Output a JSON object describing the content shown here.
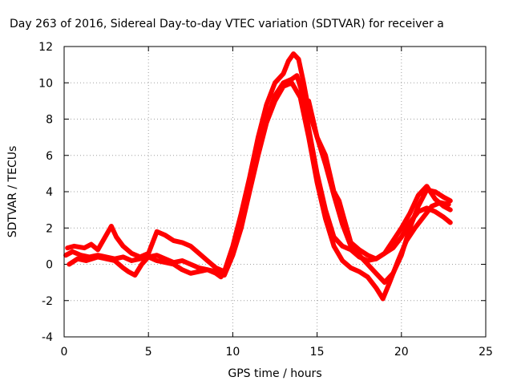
{
  "chart_data": {
    "type": "line",
    "title": "Day 263 of 2016, Sidereal Day-to-day VTEC variation (SDTVAR) for receiver a",
    "xlabel": "GPS time / hours",
    "ylabel": "SDTVAR / TECUs",
    "xlim": [
      0,
      25
    ],
    "ylim": [
      -4,
      12
    ],
    "x_ticks": [
      0,
      5,
      10,
      15,
      20,
      25
    ],
    "y_ticks": [
      -4,
      -2,
      0,
      2,
      4,
      6,
      8,
      10,
      12
    ],
    "grid": true,
    "legend": "none",
    "color": "#ff0000",
    "series": [
      {
        "x": [
          0.1,
          0.5,
          1.0,
          1.5,
          2.0,
          2.5,
          3.0,
          3.5,
          4.0,
          4.5,
          5.0,
          5.5,
          6.0,
          6.5,
          7.0,
          7.5,
          8.0,
          8.5,
          9.0,
          9.3,
          9.6,
          10.0,
          10.5,
          11.0,
          11.5,
          12.0,
          12.5,
          13.0,
          13.5,
          13.8,
          14.1,
          14.5,
          15.0,
          15.5,
          16.0,
          16.5,
          17.0,
          17.5,
          18.0,
          18.5,
          19.0,
          19.5,
          20.0,
          20.5,
          21.0,
          21.5,
          22.0,
          22.5,
          22.9
        ],
        "y": [
          0.5,
          0.7,
          0.5,
          0.4,
          0.5,
          0.4,
          0.3,
          0.4,
          0.2,
          0.3,
          0.4,
          0.5,
          0.3,
          0.1,
          0.2,
          0.0,
          -0.2,
          -0.3,
          -0.5,
          -0.7,
          -0.3,
          0.8,
          2.5,
          4.5,
          6.5,
          8.0,
          9.3,
          10.0,
          10.2,
          10.4,
          9.5,
          7.5,
          5.0,
          3.0,
          1.5,
          1.0,
          0.8,
          0.4,
          0.2,
          0.3,
          0.6,
          0.9,
          1.5,
          2.3,
          2.9,
          3.1,
          2.9,
          2.6,
          2.3
        ]
      },
      {
        "x": [
          0.2,
          0.6,
          1.2,
          1.6,
          2.0,
          2.8,
          3.1,
          3.5,
          4.0,
          4.5,
          5.0,
          5.5,
          6.0,
          6.5,
          7.0,
          7.5,
          8.0,
          8.5,
          9.0,
          9.5,
          10.0,
          10.5,
          11.0,
          11.5,
          12.0,
          12.5,
          13.0,
          13.3,
          13.6,
          13.9,
          14.2,
          14.5,
          15.0,
          15.5,
          16.0,
          16.5,
          17.0,
          17.5,
          18.0,
          18.5,
          19.0,
          19.5,
          20.0,
          20.5,
          21.0,
          21.5,
          22.0,
          22.5,
          22.9
        ],
        "y": [
          0.9,
          1.0,
          0.9,
          1.1,
          0.8,
          2.1,
          1.5,
          1.0,
          0.6,
          0.4,
          0.6,
          1.8,
          1.6,
          1.3,
          1.2,
          1.0,
          0.6,
          0.2,
          -0.2,
          -0.4,
          1.0,
          2.8,
          4.8,
          7.0,
          8.8,
          10.0,
          10.5,
          11.2,
          11.6,
          11.3,
          10.0,
          8.5,
          7.0,
          5.5,
          3.8,
          2.2,
          1.0,
          0.5,
          0.0,
          -0.5,
          -1.0,
          -0.5,
          0.5,
          2.0,
          3.2,
          4.1,
          4.0,
          3.7,
          3.5
        ]
      },
      {
        "x": [
          0.3,
          0.8,
          1.3,
          2.0,
          2.5,
          3.0,
          3.5,
          3.8,
          4.2,
          4.6,
          5.0,
          5.5,
          6.0,
          6.5,
          7.0,
          7.5,
          8.0,
          8.5,
          9.0,
          9.5,
          10.0,
          10.5,
          11.0,
          11.5,
          12.0,
          12.5,
          13.0,
          13.5,
          14.0,
          14.5,
          15.0,
          15.5,
          16.0,
          16.5,
          17.0,
          17.5,
          18.0,
          18.5,
          18.9,
          19.3,
          19.8,
          20.3,
          20.8,
          21.3,
          21.8,
          22.3,
          22.8
        ],
        "y": [
          0.0,
          0.3,
          0.2,
          0.4,
          0.3,
          0.2,
          -0.2,
          -0.4,
          -0.6,
          0.0,
          0.4,
          0.2,
          0.1,
          0.0,
          -0.3,
          -0.5,
          -0.4,
          -0.3,
          -0.4,
          -0.6,
          0.5,
          2.0,
          4.0,
          6.0,
          7.8,
          9.0,
          9.8,
          10.0,
          9.2,
          7.0,
          4.5,
          2.5,
          1.0,
          0.2,
          -0.2,
          -0.4,
          -0.7,
          -1.3,
          -1.9,
          -1.0,
          0.2,
          1.3,
          2.0,
          2.6,
          3.2,
          3.4,
          3.3
        ]
      },
      {
        "x": [
          14.5,
          15.0,
          15.5,
          16.0,
          16.3,
          16.6,
          17.0,
          17.5,
          18.0,
          18.5,
          19.0,
          19.5,
          20.0,
          20.5,
          21.0,
          21.5,
          22.0,
          22.5,
          22.9
        ],
        "y": [
          9.0,
          7.0,
          6.0,
          4.0,
          3.5,
          2.5,
          1.2,
          0.8,
          0.5,
          0.3,
          0.6,
          1.3,
          2.0,
          2.8,
          3.8,
          4.3,
          3.6,
          3.2,
          3.0
        ]
      }
    ]
  }
}
